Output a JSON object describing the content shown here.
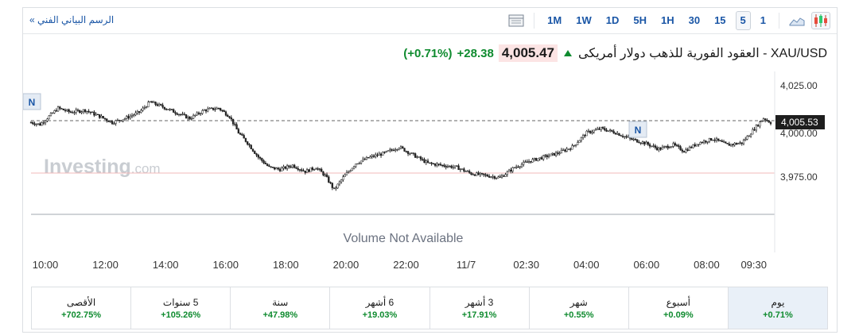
{
  "toolbar": {
    "back_link": "الرسم البياني الفني »",
    "timeframes": [
      "1M",
      "1W",
      "1D",
      "5H",
      "1H",
      "30",
      "15",
      "5",
      "1"
    ],
    "active_timeframe": "5",
    "icons": [
      "table-icon",
      "area-chart-icon",
      "candlestick-icon"
    ]
  },
  "header": {
    "instrument": "XAU/USD - العقود الفورية للذهب دولار أمريكى",
    "last_price": "4,005.47",
    "change": "+28.38",
    "change_pct": "(+0.71%)",
    "up_color": "#0f8b2f"
  },
  "chart": {
    "watermark_main": "Investing",
    "watermark_suffix": ".com",
    "volume_note": "Volume Not Available",
    "current_price_tag": "4,005.53",
    "marker_label": "N",
    "y_ticks": [
      "4,025.00",
      "4,000.00",
      "3,975.00"
    ],
    "x_ticks": [
      "10:00",
      "12:00",
      "14:00",
      "16:00",
      "18:00",
      "20:00",
      "22:00",
      "11/7",
      "02:30",
      "04:00",
      "06:00",
      "08:00",
      "09:30"
    ]
  },
  "chart_data": {
    "type": "candlestick",
    "instrument": "XAU/USD",
    "interval": "5",
    "ylim": [
      3960,
      4030
    ],
    "y_ticks": [
      4025,
      4000,
      3975
    ],
    "current_price": 4005.53,
    "reference_line": 3977,
    "x_labels": [
      "10:00",
      "12:00",
      "14:00",
      "16:00",
      "18:00",
      "20:00",
      "22:00",
      "11/7",
      "02:30",
      "04:00",
      "06:00",
      "08:00",
      "09:30"
    ],
    "close_path": [
      [
        0,
        4005
      ],
      [
        5,
        4004
      ],
      [
        10,
        4008
      ],
      [
        15,
        4012
      ],
      [
        22,
        4010
      ],
      [
        30,
        4011
      ],
      [
        38,
        4008
      ],
      [
        45,
        4005
      ],
      [
        52,
        4007
      ],
      [
        60,
        4010
      ],
      [
        66,
        4015
      ],
      [
        72,
        4013
      ],
      [
        80,
        4010
      ],
      [
        88,
        4007
      ],
      [
        96,
        4011
      ],
      [
        104,
        4012
      ],
      [
        110,
        4008
      ],
      [
        115,
        4000
      ],
      [
        120,
        3995
      ],
      [
        126,
        3988
      ],
      [
        132,
        3983
      ],
      [
        138,
        3982
      ],
      [
        145,
        3984
      ],
      [
        152,
        3981
      ],
      [
        158,
        3983
      ],
      [
        163,
        3979
      ],
      [
        168,
        3972
      ],
      [
        173,
        3978
      ],
      [
        180,
        3985
      ],
      [
        188,
        3988
      ],
      [
        196,
        3990
      ],
      [
        204,
        3993
      ],
      [
        212,
        3989
      ],
      [
        220,
        3985
      ],
      [
        228,
        3984
      ],
      [
        236,
        3983
      ],
      [
        244,
        3980
      ],
      [
        252,
        3979
      ],
      [
        260,
        3978
      ],
      [
        268,
        3983
      ],
      [
        276,
        3986
      ],
      [
        284,
        3988
      ],
      [
        292,
        3990
      ],
      [
        300,
        3993
      ],
      [
        308,
        4000
      ],
      [
        316,
        4002
      ],
      [
        324,
        4000
      ],
      [
        332,
        3997
      ],
      [
        340,
        3995
      ],
      [
        348,
        3992
      ],
      [
        356,
        3994
      ],
      [
        362,
        3991
      ],
      [
        370,
        3995
      ],
      [
        378,
        3997
      ],
      [
        386,
        3994
      ],
      [
        394,
        3995
      ],
      [
        402,
        4003
      ],
      [
        406,
        4007
      ],
      [
        410,
        4005
      ]
    ],
    "performance": [
      {
        "period": "يوم",
        "value": "+0.71%"
      },
      {
        "period": "أسبوع",
        "value": "+0.09%"
      },
      {
        "period": "شهر",
        "value": "+0.55%"
      },
      {
        "period": "3 أشهر",
        "value": "+17.91%"
      },
      {
        "period": "6 أشهر",
        "value": "+19.03%"
      },
      {
        "period": "سنة",
        "value": "+47.98%"
      },
      {
        "period": "5 سنوات",
        "value": "+105.26%"
      },
      {
        "period": "الأقصى",
        "value": "+702.75%"
      }
    ]
  },
  "performance": {
    "active": "يوم",
    "cells": [
      {
        "label": "يوم",
        "value": "+0.71%"
      },
      {
        "label": "أسبوع",
        "value": "+0.09%"
      },
      {
        "label": "شهر",
        "value": "+0.55%"
      },
      {
        "label": "3 أشهر",
        "value": "+17.91%"
      },
      {
        "label": "6 أشهر",
        "value": "+19.03%"
      },
      {
        "label": "سنة",
        "value": "+47.98%"
      },
      {
        "label": "5 سنوات",
        "value": "+105.26%"
      },
      {
        "label": "الأقصى",
        "value": "+702.75%"
      }
    ]
  }
}
